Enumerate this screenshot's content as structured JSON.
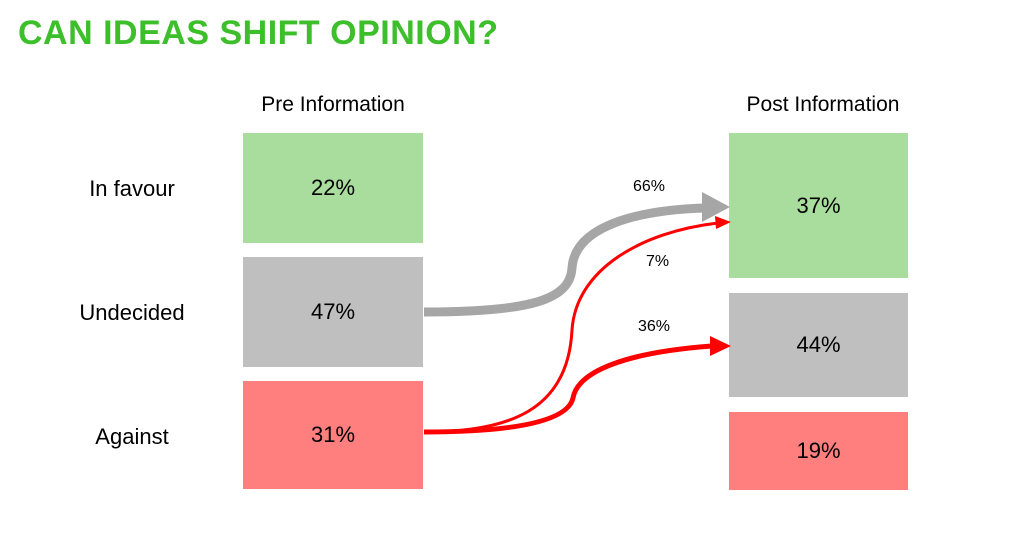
{
  "title": "CAN IDEAS SHIFT OPINION?",
  "headers": {
    "pre": "Pre Information",
    "post": "Post Information"
  },
  "rows": {
    "favour": "In favour",
    "undecided": "Undecided",
    "against": "Against"
  },
  "pre": {
    "favour": "22%",
    "undecided": "47%",
    "against": "31%"
  },
  "post": {
    "favour": "37%",
    "undecided": "44%",
    "against": "19%"
  },
  "flows": {
    "undecided_to_favour": "66%",
    "against_to_favour": "7%",
    "against_to_undecided": "36%"
  },
  "colors": {
    "title": "#3cbf2a",
    "favour": "#a9dd9d",
    "undecided": "#bfbfbf",
    "against": "#ff7f7f",
    "gray_arrow": "#a6a6a6",
    "red_arrow": "#ff0000"
  }
}
